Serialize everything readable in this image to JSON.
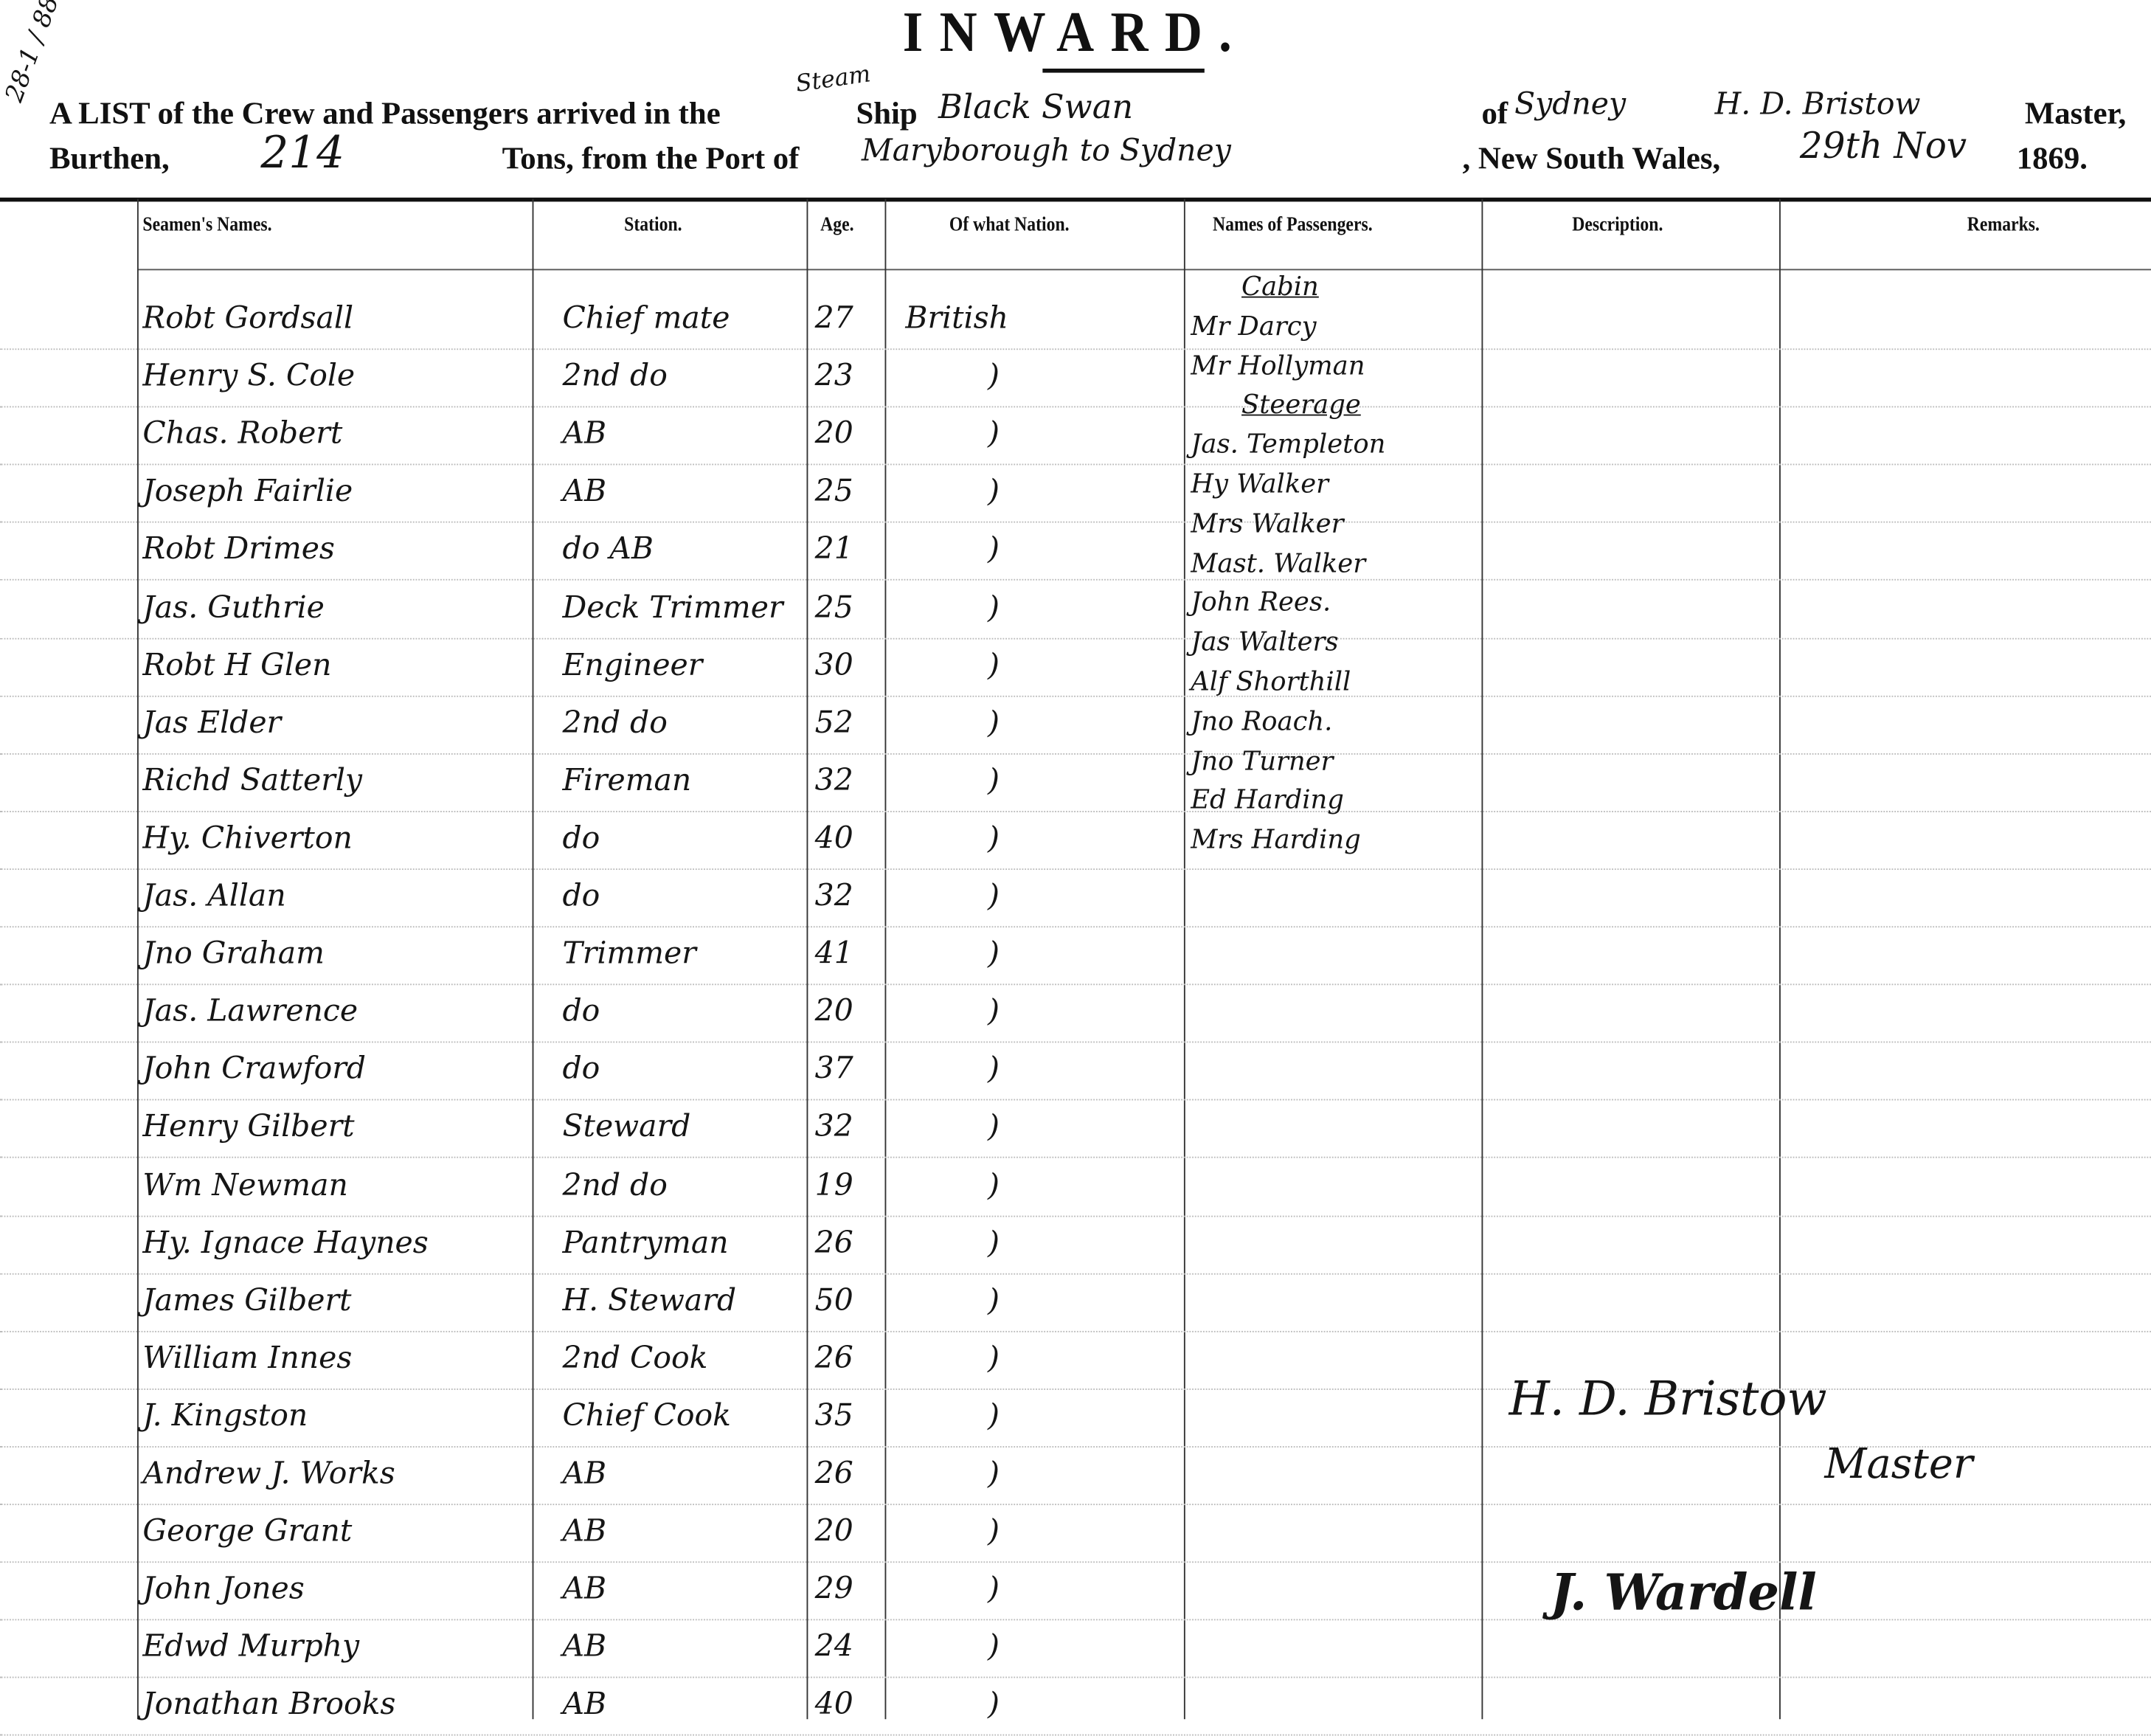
{
  "margin_note": "28-1 / 88",
  "title": "INWARD.",
  "header": {
    "line1_prefix": "A LIST of the Crew and Passengers arrived in the",
    "ship_type_insert": "Steam",
    "ship_word": "Ship",
    "ship_name": "Black Swan",
    "of_word": "of",
    "home_port": "Sydney",
    "master_name": "H. D. Bristow",
    "master_word": "Master,",
    "burthen_label": "Burthen,",
    "burthen_value": "214",
    "tons_label": "Tons, from the Port of",
    "from_port": "Maryborough to Sydney",
    "nsw_label": ", New South Wales,",
    "date_day": "29th Nov",
    "date_year": "1869."
  },
  "columns": [
    "Seamen's Names.",
    "Station.",
    "Age.",
    "Of what Nation.",
    "Names of Passengers.",
    "Description.",
    "Remarks."
  ],
  "crew": [
    {
      "name": "Robt Gordsall",
      "station": "Chief mate",
      "age": "27",
      "nation": "British"
    },
    {
      "name": "Henry S. Cole",
      "station": "2nd do",
      "age": "23",
      "nation": ")"
    },
    {
      "name": "Chas. Robert",
      "station": "AB",
      "age": "20",
      "nation": ")"
    },
    {
      "name": "Joseph Fairlie",
      "station": "AB",
      "age": "25",
      "nation": ")"
    },
    {
      "name": "Robt Drimes",
      "station": "do AB",
      "age": "21",
      "nation": ")"
    },
    {
      "name": "Jas. Guthrie",
      "station": "Deck Trimmer",
      "age": "25",
      "nation": ")"
    },
    {
      "name": "Robt H Glen",
      "station": "Engineer",
      "age": "30",
      "nation": ")"
    },
    {
      "name": "Jas Elder",
      "station": "2nd do",
      "age": "52",
      "nation": ")"
    },
    {
      "name": "Richd Satterly",
      "station": "Fireman",
      "age": "32",
      "nation": ")"
    },
    {
      "name": "Hy. Chiverton",
      "station": "do",
      "age": "40",
      "nation": ")"
    },
    {
      "name": "Jas. Allan",
      "station": "do",
      "age": "32",
      "nation": ")"
    },
    {
      "name": "Jno Graham",
      "station": "Trimmer",
      "age": "41",
      "nation": ")"
    },
    {
      "name": "Jas. Lawrence",
      "station": "do",
      "age": "20",
      "nation": ")"
    },
    {
      "name": "John Crawford",
      "station": "do",
      "age": "37",
      "nation": ")"
    },
    {
      "name": "Henry Gilbert",
      "station": "Steward",
      "age": "32",
      "nation": ")"
    },
    {
      "name": "Wm Newman",
      "station": "2nd do",
      "age": "19",
      "nation": ")"
    },
    {
      "name": "Hy. Ignace Haynes",
      "station": "Pantryman",
      "age": "26",
      "nation": ")"
    },
    {
      "name": "James Gilbert",
      "station": "H. Steward",
      "age": "50",
      "nation": ")"
    },
    {
      "name": "William Innes",
      "station": "2nd Cook",
      "age": "26",
      "nation": ")"
    },
    {
      "name": "J. Kingston",
      "station": "Chief Cook",
      "age": "35",
      "nation": ")"
    },
    {
      "name": "Andrew J. Works",
      "station": "AB",
      "age": "26",
      "nation": ")"
    },
    {
      "name": "George Grant",
      "station": "AB",
      "age": "20",
      "nation": ")"
    },
    {
      "name": "John Jones",
      "station": "AB",
      "age": "29",
      "nation": ")"
    },
    {
      "name": "Edwd Murphy",
      "station": "AB",
      "age": "24",
      "nation": ")"
    },
    {
      "name": "Jonathan Brooks",
      "station": "AB",
      "age": "40",
      "nation": ")"
    }
  ],
  "passengers": [
    {
      "text": "Cabin",
      "heading": true
    },
    {
      "text": "Mr Darcy"
    },
    {
      "text": "Mr Hollyman"
    },
    {
      "text": "Steerage",
      "heading": true
    },
    {
      "text": "Jas. Templeton"
    },
    {
      "text": "Hy Walker"
    },
    {
      "text": "Mrs Walker"
    },
    {
      "text": "Mast. Walker"
    },
    {
      "text": "John Rees."
    },
    {
      "text": "Jas Walters"
    },
    {
      "text": "Alf Shorthill"
    },
    {
      "text": "Jno Roach."
    },
    {
      "text": "Jno Turner"
    },
    {
      "text": "Ed Harding"
    },
    {
      "text": "Mrs Harding"
    }
  ],
  "signature": {
    "name": "H. D. Bristow",
    "role": "Master",
    "second": "J. Wardell"
  }
}
